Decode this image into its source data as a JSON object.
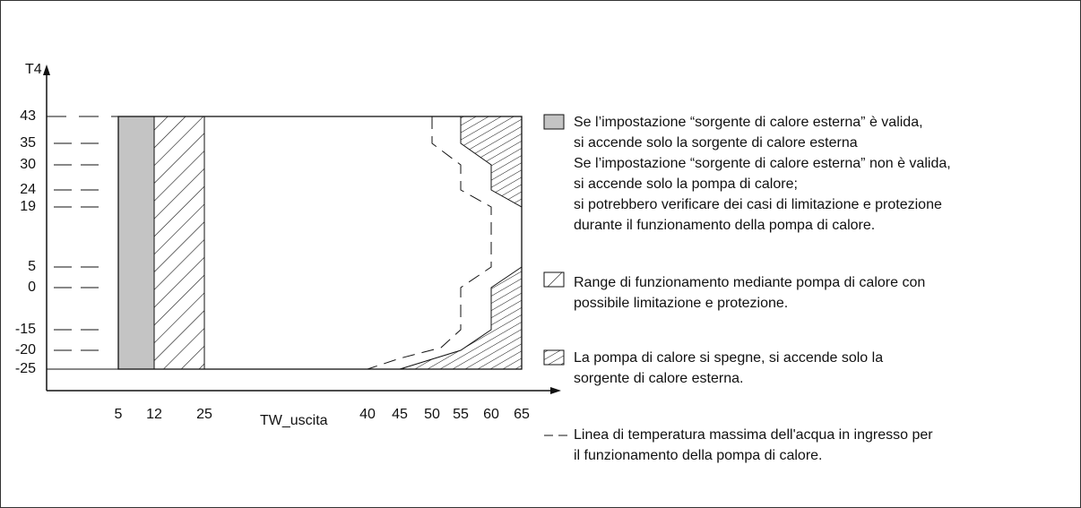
{
  "diagram": {
    "y_axis": {
      "label": "T4",
      "ticks": [
        43,
        35,
        30,
        24,
        19,
        5,
        0,
        -15,
        -20,
        -25
      ]
    },
    "x_axis": {
      "label": "TW_uscita",
      "ticks": [
        5,
        12,
        25,
        40,
        45,
        50,
        55,
        60,
        65
      ]
    },
    "legend": [
      {
        "kind": "gray",
        "lines": [
          "Se l’impostazione “sorgente di calore esterna” è valida,",
          "si accende solo la sorgente di calore esterna",
          "Se l’impostazione “sorgente di calore esterna” non è valida,",
          "si accende solo la pompa di calore;",
          "si potrebbero verificare dei casi di limitazione e protezione",
          "durante il funzionamento della pompa di calore."
        ]
      },
      {
        "kind": "hatch",
        "lines": [
          "Range di funzionamento mediante pompa di calore con",
          "possibile limitazione e protezione."
        ]
      },
      {
        "kind": "cross",
        "lines": [
          "La pompa di calore si spegne, si accende solo la",
          "sorgente di calore esterna."
        ]
      },
      {
        "kind": "dash",
        "lines": [
          "Linea di temperatura massima dell'acqua in ingresso per",
          "il funzionamento della pompa di calore."
        ]
      }
    ]
  }
}
